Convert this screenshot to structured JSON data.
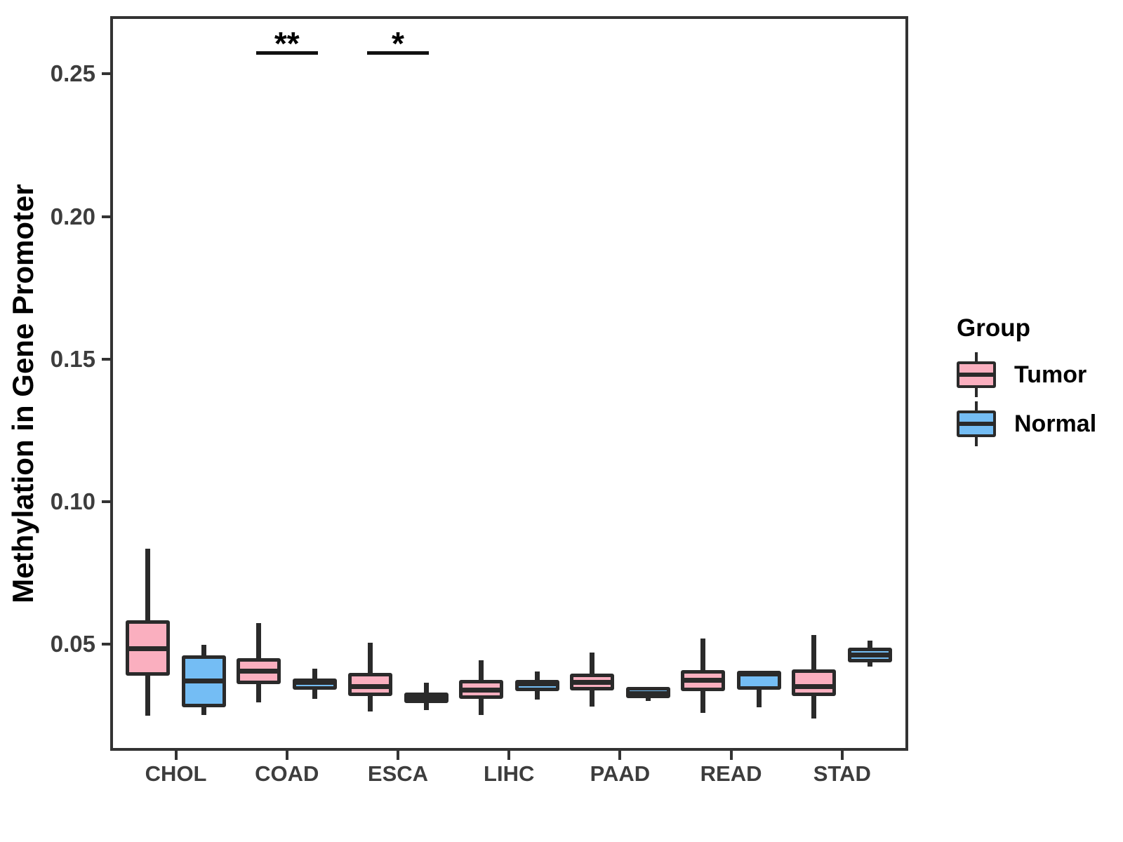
{
  "figure": {
    "y_axis": {
      "title": "Methylation in Gene Promoter",
      "tick_labels": [
        "0.25",
        "0.20",
        "0.15",
        "0.10",
        "0.05"
      ]
    },
    "x_axis": {
      "labels": [
        "CHOL",
        "COAD",
        "ESCA",
        "LIHC",
        "PAAD",
        "READ",
        "STAD"
      ]
    },
    "legend": {
      "title": "Group",
      "entries": [
        {
          "label": "Tumor",
          "fill": "#FAAFBF"
        },
        {
          "label": "Normal",
          "fill": "#74BDF4"
        }
      ]
    },
    "colors": {
      "tumor_fill": "#FAAFBF",
      "normal_fill": "#74BDF4",
      "box_stroke": "#2A2A2A",
      "axis_stroke": "#333333",
      "tick_text": "#3D3D3D"
    }
  },
  "chart_data": {
    "type": "boxplot",
    "title": "",
    "xlabel": "",
    "ylabel": "Methylation in Gene Promoter",
    "categories": [
      "CHOL",
      "COAD",
      "ESCA",
      "LIHC",
      "PAAD",
      "READ",
      "STAD"
    ],
    "ylim": [
      0.0126,
      0.2703
    ],
    "yticks": [
      {
        "label": "0.25",
        "value": 0.25
      },
      {
        "label": "0.20",
        "value": 0.2
      },
      {
        "label": "0.15",
        "value": 0.15
      },
      {
        "label": "0.10",
        "value": 0.1
      },
      {
        "label": "0.05",
        "value": 0.05
      }
    ],
    "grid": false,
    "legend_position": "right",
    "series": [
      {
        "name": "Tumor",
        "fill": "#FAAFBF",
        "boxes": [
          {
            "category": "CHOL",
            "min": 0.025,
            "q1": 0.039,
            "median": 0.0485,
            "q3": 0.0585,
            "max": 0.0835
          },
          {
            "category": "COAD",
            "min": 0.0295,
            "q1": 0.036,
            "median": 0.0405,
            "q3": 0.045,
            "max": 0.0575
          },
          {
            "category": "ESCA",
            "min": 0.0265,
            "q1": 0.0318,
            "median": 0.0352,
            "q3": 0.04,
            "max": 0.0505
          },
          {
            "category": "LIHC",
            "min": 0.0252,
            "q1": 0.0308,
            "median": 0.0338,
            "q3": 0.0375,
            "max": 0.0443
          },
          {
            "category": "PAAD",
            "min": 0.028,
            "q1": 0.0338,
            "median": 0.0365,
            "q3": 0.0397,
            "max": 0.0471
          },
          {
            "category": "READ",
            "min": 0.026,
            "q1": 0.0335,
            "median": 0.0374,
            "q3": 0.0409,
            "max": 0.052
          },
          {
            "category": "STAD",
            "min": 0.024,
            "q1": 0.0319,
            "median": 0.0352,
            "q3": 0.0411,
            "max": 0.0531
          }
        ]
      },
      {
        "name": "Normal",
        "fill": "#74BDF4",
        "boxes": [
          {
            "category": "CHOL",
            "min": 0.0252,
            "q1": 0.0278,
            "median": 0.037,
            "q3": 0.046,
            "max": 0.0498
          },
          {
            "category": "COAD",
            "min": 0.0307,
            "q1": 0.0339,
            "median": 0.0365,
            "q3": 0.038,
            "max": 0.0414
          },
          {
            "category": "ESCA",
            "min": 0.0268,
            "q1": 0.0293,
            "median": 0.0315,
            "q3": 0.0331,
            "max": 0.0364
          },
          {
            "category": "LIHC",
            "min": 0.0306,
            "q1": 0.0335,
            "median": 0.036,
            "q3": 0.0374,
            "max": 0.0404
          },
          {
            "category": "PAAD",
            "min": 0.0301,
            "q1": 0.0311,
            "median": 0.0327,
            "q3": 0.0349,
            "max": 0.035
          },
          {
            "category": "READ",
            "min": 0.0278,
            "q1": 0.0339,
            "median": 0.0396,
            "q3": 0.0406,
            "max": 0.0406
          },
          {
            "category": "STAD",
            "min": 0.0422,
            "q1": 0.0436,
            "median": 0.0461,
            "q3": 0.0488,
            "max": 0.0512
          }
        ]
      }
    ],
    "annotations": [
      {
        "category": "COAD",
        "label": "**",
        "y": 0.258
      },
      {
        "category": "ESCA",
        "label": "*",
        "y": 0.258
      }
    ]
  }
}
